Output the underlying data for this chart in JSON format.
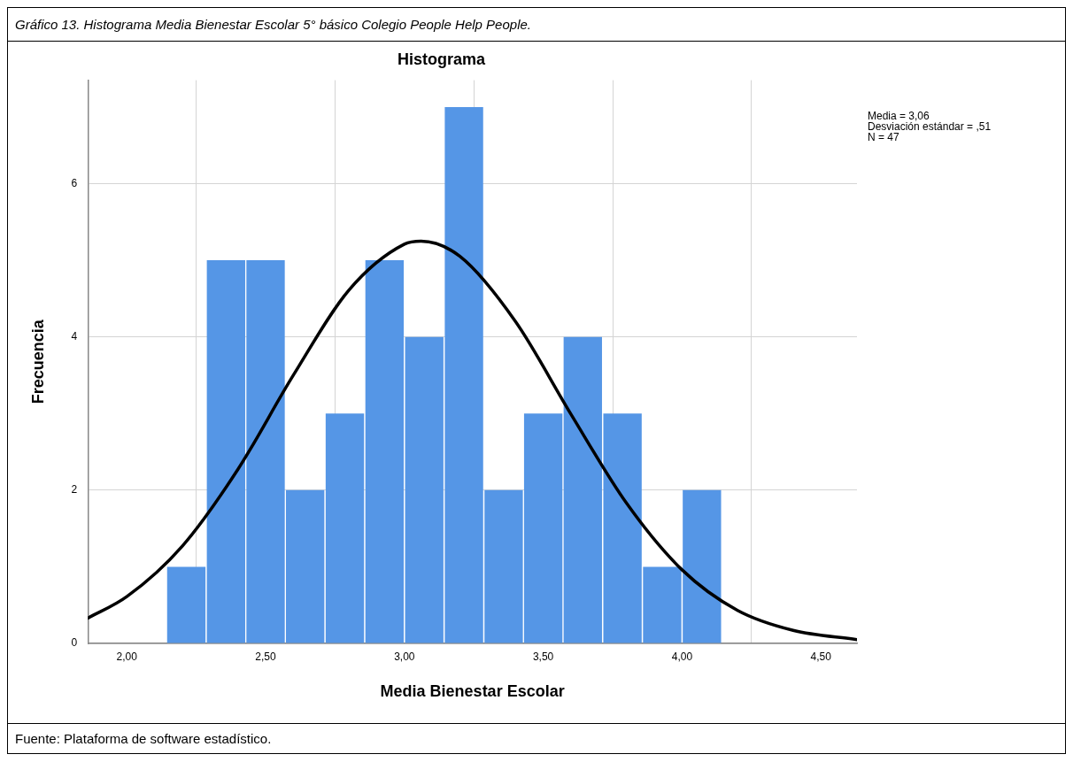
{
  "chart_data": {
    "type": "histogram",
    "title": "Histograma",
    "xlabel": "Media Bienestar Escolar",
    "ylabel": "Frecuencia",
    "annotations": [
      "Gráfico 13. Histograma Media Bienestar Escolar 5° básico Colegio People Help People.",
      "Media = 3,06",
      "Desviación estándar = ,51",
      "N = 47",
      "Fuente: Plataforma de software estadístico."
    ],
    "series": [
      {
        "color": "#5596e6",
        "bins": [
          2.143,
          2.286,
          2.429,
          2.571,
          2.714,
          2.857,
          3.0,
          3.143,
          3.286,
          3.429,
          3.571,
          3.714,
          3.857,
          4.0,
          4.143
        ],
        "values": [
          1,
          5,
          5,
          2,
          3,
          5,
          4,
          7,
          2,
          3,
          4,
          3,
          1,
          2
        ]
      },
      {
        "type": "line",
        "color": "#000000",
        "x": [
          1.86,
          2.0,
          2.2,
          2.4,
          2.6,
          2.8,
          3.0,
          3.06,
          3.2,
          3.4,
          3.6,
          3.8,
          4.0,
          4.2,
          4.4,
          4.63
        ],
        "values": [
          0.33,
          0.61,
          1.27,
          2.27,
          3.5,
          4.61,
          5.21,
          5.25,
          5.05,
          4.2,
          2.99,
          1.83,
          0.96,
          0.43,
          0.17,
          0.05
        ]
      }
    ],
    "xlim": [
      1.86,
      4.63
    ],
    "xticks": [
      {
        "value": 2,
        "label": "2,00"
      },
      {
        "value": 2.5,
        "label": "2,50"
      },
      {
        "value": 3,
        "label": "3,00"
      },
      {
        "value": 3.5,
        "label": "3,50"
      },
      {
        "value": 4,
        "label": "4,00"
      },
      {
        "value": 4.5,
        "label": "4,50"
      }
    ],
    "ylim": [
      0,
      7.35
    ],
    "yticks": [
      0,
      2,
      4,
      6
    ],
    "grid": true,
    "legend": false
  }
}
